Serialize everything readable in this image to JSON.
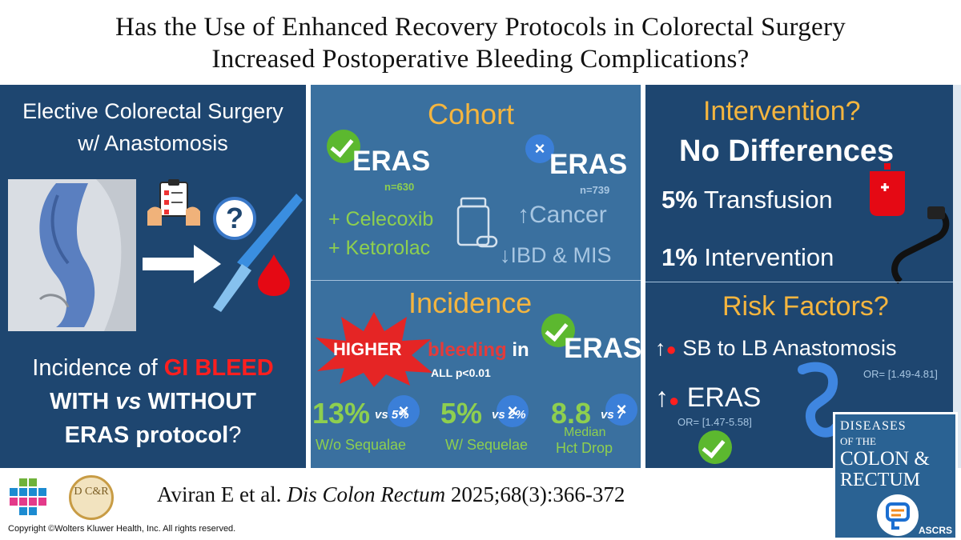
{
  "title": {
    "line1": "Has the Use of Enhanced Recovery Protocols in Colorectal Surgery",
    "line2": "Increased Postoperative Bleeding Complications?"
  },
  "left": {
    "heading1": "Elective Colorectal Surgery",
    "heading2": "w/ Anastomosis",
    "question_icon": "?",
    "q1_pre": "Incidence of ",
    "q1_red": "GI BLEED",
    "q2_pre": "WITH ",
    "q2_vs": "vs",
    "q2_post": " WITHOUT",
    "q3_bold": "ERAS protocol",
    "q3_end": "?"
  },
  "middle": {
    "cohort_title": "Cohort",
    "eras_yes": "ERAS",
    "eras_yes_n": "n=630",
    "eras_no": "ERAS",
    "eras_no_n": "n=739",
    "drug1": "+ Celecoxib",
    "drug2": "+ Ketorolac",
    "cancer": "Cancer",
    "ibd": "IBD & MIS",
    "incidence_title": "Incidence",
    "higher": "HIGHER",
    "bleeding": "bleeding",
    "in": " in",
    "eras": "ERAS",
    "pval": "ALL p<0.01",
    "stats": [
      {
        "value": "13%",
        "vs": "vs 5%",
        "label": "W/o Sequalae"
      },
      {
        "value": "5%",
        "vs": "vs 2%",
        "label": "W/ Sequelae"
      },
      {
        "value": "8.8",
        "vs": "vs 7",
        "label1": "Median",
        "label2": "Hct Drop"
      }
    ]
  },
  "right": {
    "intervention_title": "Intervention?",
    "no_diff": "No Differences",
    "transfusion_pct": "5%",
    "transfusion": " Transfusion",
    "intervention_pct": "1%",
    "intervention": " Intervention",
    "risk_title": "Risk Factors?",
    "rf1": "SB to LB Anastomosis",
    "rf1_or": "OR= [1.49-4.81]",
    "rf2": "ERAS",
    "rf2_or": "OR= [1.47-5.58]"
  },
  "footer": {
    "citation_pre": "Aviran E et al. ",
    "citation_journal": "Dis Colon Rectum",
    "citation_post": " 2025;68(3):366-372",
    "copyright": "Copyright ©Wolters Kluwer Health, Inc. All rights reserved.",
    "dcr_logo": "D C&R"
  },
  "journal_cover": {
    "line1": "DISEASES",
    "line2": "OF THE",
    "line3": "COLON &",
    "line4": "RECTUM",
    "society": "ASCRS"
  },
  "colors": {
    "dark_panel": "#1e4670",
    "mid_panel": "#3a709f",
    "green": "#8ecf4f",
    "orange": "#f4b53f",
    "red": "#ff1f1f"
  }
}
